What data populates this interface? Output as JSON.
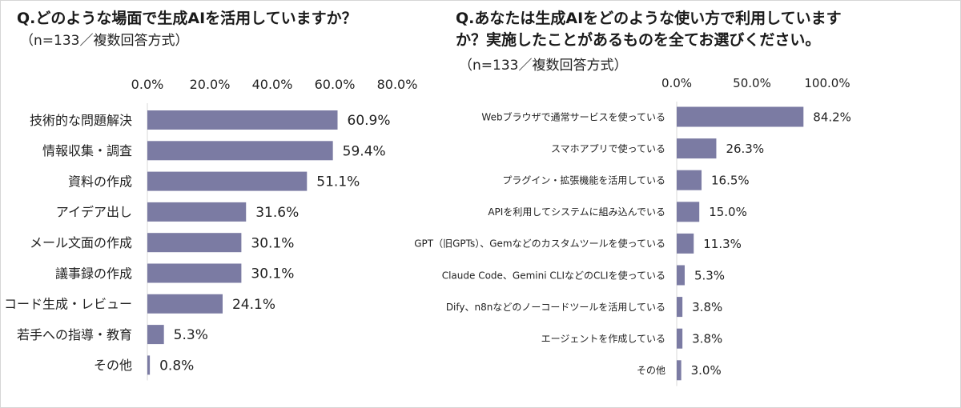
{
  "colors": {
    "bar": "#7b7ba3",
    "axis": "#d9d9d9",
    "text": "#222222"
  },
  "chart_data": [
    {
      "type": "bar",
      "orientation": "horizontal",
      "title": "Q.どのような場面で生成AIを活用していますか？",
      "subtitle": "（n=133／複数回答方式）",
      "xlim": [
        0,
        80
      ],
      "ticks": [
        "0.0%",
        "20.0%",
        "40.0%",
        "60.0%",
        "80.0%"
      ],
      "tick_values": [
        0,
        20,
        40,
        60,
        80
      ],
      "categories": [
        "技術的な問題解決",
        "情報収集・調査",
        "資料の作成",
        "アイデア出し",
        "メール文面の作成",
        "議事録の作成",
        "コード生成・レビュー",
        "若手への指導・教育",
        "その他"
      ],
      "values": [
        60.9,
        59.4,
        51.1,
        31.6,
        30.1,
        30.1,
        24.1,
        5.3,
        0.8
      ],
      "labels": [
        "60.9%",
        "59.4%",
        "51.1%",
        "31.6%",
        "30.1%",
        "30.1%",
        "24.1%",
        "5.3%",
        "0.8%"
      ]
    },
    {
      "type": "bar",
      "orientation": "horizontal",
      "title": "Q.あなたは生成AIをどのような使い方で利用しています\nか？実施したことがあるものを全てお選びください。",
      "subtitle": "（n=133／複数回答方式）",
      "xlim": [
        0,
        100
      ],
      "ticks": [
        "0.0%",
        "50.0%",
        "100.0%"
      ],
      "tick_values": [
        0,
        50,
        100
      ],
      "categories": [
        "Webブラウザで通常サービスを使っている",
        "スマホアプリで使っている",
        "プラグイン・拡張機能を活用している",
        "APIを利用してシステムに組み込んでいる",
        "GPT（旧GPTs）、Gemなどのカスタムツールを使っている",
        "Claude Code、Gemini CLIなどのCLIを使っている",
        "Dify、n8nなどのノーコードツールを活用している",
        "エージェントを作成している",
        "その他"
      ],
      "values": [
        84.2,
        26.3,
        16.5,
        15.0,
        11.3,
        5.3,
        3.8,
        3.8,
        3.0
      ],
      "labels": [
        "84.2%",
        "26.3%",
        "16.5%",
        "15.0%",
        "11.3%",
        "5.3%",
        "3.8%",
        "3.8%",
        "3.0%"
      ]
    }
  ]
}
